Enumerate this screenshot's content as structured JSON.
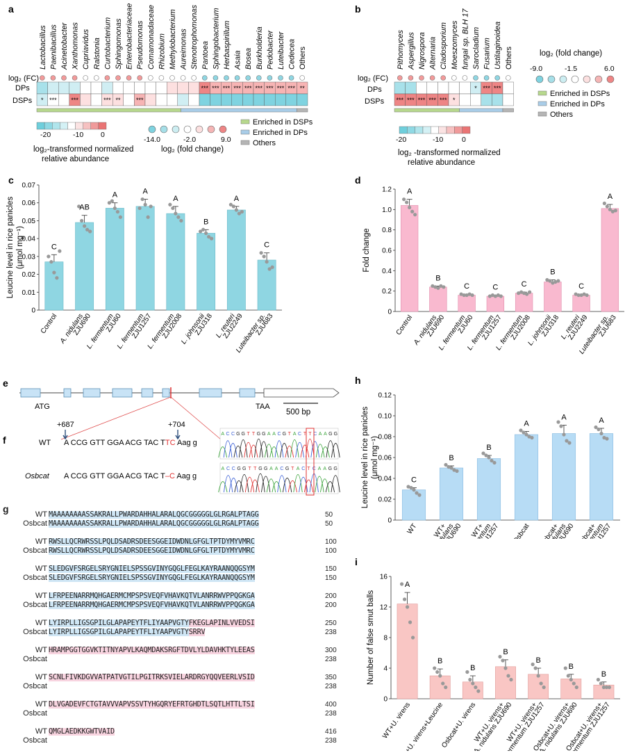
{
  "panel_letters": {
    "a": "a",
    "b": "b",
    "c": "c",
    "d": "d",
    "e": "e",
    "f": "f",
    "g": "g",
    "h": "h",
    "i": "i"
  },
  "panel_a": {
    "taxa": [
      "Lactobacillus",
      "Paenibacillus",
      "Acinetobacter",
      "Xanthomonas",
      "Cupriavidus",
      "Ralstonia",
      "Curtobacterium",
      "Sphingomonas",
      "Enterobacteriaceae",
      "Pseudomonas",
      "Comamonadaceae",
      "Rhizobium",
      "Methylobacterium",
      "Aureimonas",
      "Stenotrophomonas",
      "Pantoea",
      "Sphingobacterium",
      "Herbaspirillum",
      "Asaia",
      "Bosea",
      "Burkholderia",
      "Pedobacter",
      "Luteibacter",
      "Cedecea",
      "Others"
    ],
    "fc_label": "log₂ (FC)",
    "rows": [
      "DPs",
      "DSPs"
    ],
    "dps_stars": [
      "",
      "",
      "",
      "",
      "",
      "",
      "",
      "",
      "",
      "",
      "",
      "",
      "",
      "",
      "",
      "***",
      "***",
      "***",
      "***",
      "***",
      "***",
      "***",
      "***",
      "***",
      "**"
    ],
    "dsps_stars": [
      "*",
      "***",
      "",
      "***",
      "",
      "",
      "***",
      "**",
      "",
      "***",
      "",
      "",
      "",
      "",
      "",
      "",
      "",
      "",
      "",
      "",
      "",
      "",
      "",
      "",
      ""
    ],
    "colorbar_ticks": [
      "-20",
      "-10",
      "0"
    ],
    "colorbar_title_1": "log₂-transformed normalized",
    "colorbar_title_2": "relative abundance",
    "fc_ticks": [
      "-14.0",
      "-2.0",
      "9.0"
    ],
    "fc_title": "log₂ (fold change)",
    "legend": [
      "Enriched in DSPs",
      "Enriched in DPs",
      "Others"
    ]
  },
  "panel_b": {
    "taxa": [
      "Pithomyces",
      "Aspergillus",
      "Nigrospora",
      "Alternaria",
      "Cladosporium",
      "Moeszomyces",
      "fungal sp. BLH 17",
      "Sarocladium",
      "Fusarium",
      "Ustilaginoidea",
      "Others"
    ],
    "fc_label": "log₂ (FC)",
    "rows": [
      "DPs",
      "DSPs"
    ],
    "dps_stars": [
      "",
      "",
      "",
      "",
      "",
      "",
      "",
      "*",
      "***",
      "***",
      ""
    ],
    "dsps_stars": [
      "***",
      "***",
      "***",
      "***",
      "***",
      "*",
      "",
      "",
      "",
      "",
      ""
    ],
    "colorbar_ticks": [
      "-20",
      "-10",
      "0"
    ],
    "colorbar_title_1": "log₂ -transformed normalized",
    "colorbar_title_2": "relative abundance",
    "fc_title": "log₂ (fold change)",
    "fc_ticks": [
      "-9.0",
      "-1.5",
      "6.0"
    ],
    "legend": [
      "Enriched in DSPs",
      "Enriched in DPs",
      "Others"
    ]
  },
  "chart_data": [
    {
      "id": "c",
      "type": "bar",
      "ylabel": "Leucine level in rice panicles (μmol mg⁻¹)",
      "ylim": [
        0,
        0.07
      ],
      "yticks": [
        "0",
        "0.01",
        "0.02",
        "0.03",
        "0.04",
        "0.05",
        "0.06",
        "0.07"
      ],
      "categories": [
        [
          "Control"
        ],
        [
          "A. nidulans",
          "ZJU690"
        ],
        [
          "L. fermentum",
          "ZJU60"
        ],
        [
          "L. fermentum",
          "ZJU1257"
        ],
        [
          "L. fermentum",
          "ZJU2008"
        ],
        [
          "L. johnsonii",
          "ZJU318"
        ],
        [
          "L. reuteri",
          "ZJU2249"
        ],
        [
          "Luteibacter sp.",
          "ZJU683"
        ]
      ],
      "values": [
        0.027,
        0.049,
        0.057,
        0.058,
        0.054,
        0.043,
        0.056,
        0.028
      ],
      "errors": [
        0.004,
        0.004,
        0.003,
        0.004,
        0.004,
        0.002,
        0.002,
        0.004
      ],
      "letters": [
        "C",
        "AB",
        "A",
        "A",
        "A",
        "B",
        "A",
        "C"
      ],
      "points": [
        [
          0.03,
          0.027,
          0.021,
          0.018,
          0.033
        ],
        [
          0.058,
          0.05,
          0.047,
          0.045,
          0.044
        ],
        [
          0.06,
          0.061,
          0.057,
          0.055,
          0.052
        ],
        [
          0.057,
          0.062,
          0.059,
          0.052,
          0.058
        ],
        [
          0.059,
          0.057,
          0.054,
          0.052,
          0.05
        ],
        [
          0.044,
          0.045,
          0.043,
          0.041,
          0.04
        ],
        [
          0.059,
          0.058,
          0.056,
          0.054,
          0.055
        ],
        [
          0.032,
          0.03,
          0.027,
          0.023,
          0.024
        ]
      ]
    },
    {
      "id": "d",
      "type": "bar",
      "ylabel": "Fold change",
      "ylim": [
        0,
        1.2
      ],
      "yticks": [
        "0",
        "0.2",
        "0.4",
        "0.6",
        "0.8",
        "1.0",
        "1.2"
      ],
      "categories": [
        [
          "Control"
        ],
        [
          "A. nidulans",
          "ZJU690"
        ],
        [
          "L. fermentum",
          "ZJU60"
        ],
        [
          "L. fermentum",
          "ZJU1257"
        ],
        [
          "L. fermentum",
          "ZJU2008"
        ],
        [
          "L. johnsonii",
          "ZJU318"
        ],
        [
          "L. reuteri",
          "ZJU2249"
        ],
        [
          "Luteibacter sp.",
          "ZJU683"
        ]
      ],
      "values": [
        1.04,
        0.24,
        0.16,
        0.15,
        0.18,
        0.29,
        0.16,
        1.01
      ],
      "errors": [
        0.06,
        0.01,
        0.01,
        0.01,
        0.01,
        0.02,
        0.01,
        0.04
      ],
      "letters": [
        "A",
        "B",
        "C",
        "C",
        "C",
        "B",
        "C",
        "A"
      ],
      "points": [
        [
          1.1,
          1.07,
          1.02,
          0.98,
          0.95
        ],
        [
          0.25,
          0.24,
          0.23,
          0.25,
          0.24
        ],
        [
          0.17,
          0.16,
          0.16,
          0.17,
          0.16
        ],
        [
          0.15,
          0.16,
          0.15,
          0.16,
          0.15
        ],
        [
          0.18,
          0.19,
          0.18,
          0.17,
          0.19
        ],
        [
          0.31,
          0.3,
          0.28,
          0.29,
          0.3
        ],
        [
          0.17,
          0.16,
          0.16,
          0.17,
          0.16
        ],
        [
          1.06,
          1.03,
          1.0,
          0.98,
          0.99
        ]
      ]
    },
    {
      "id": "h",
      "type": "bar",
      "ylabel": "Leucine level in rice panicles (μmol mg⁻¹)",
      "ylim": [
        0,
        0.12
      ],
      "yticks": [
        "0",
        "0.02",
        "0.04",
        "0.06",
        "0.08",
        "0.10",
        "0.12"
      ],
      "categories": [
        [
          "WT"
        ],
        [
          "WT+",
          "A. nidulans",
          "ZJU690"
        ],
        [
          "WT+",
          "L. fermentum",
          "ZJU1257"
        ],
        [
          "Osbcat"
        ],
        [
          "Osbcat+",
          "A. nidulans",
          "ZJU690"
        ],
        [
          "Osbcat+",
          "L. fermentum",
          "ZJU1257"
        ]
      ],
      "values": [
        0.029,
        0.05,
        0.059,
        0.082,
        0.083,
        0.083
      ],
      "errors": [
        0.002,
        0.002,
        0.003,
        0.003,
        0.008,
        0.005
      ],
      "letters": [
        "C",
        "B",
        "B",
        "A",
        "A",
        "A"
      ],
      "points": [
        [
          0.032,
          0.031,
          0.029,
          0.026,
          0.024
        ],
        [
          0.053,
          0.051,
          0.05,
          0.048,
          0.047
        ],
        [
          0.064,
          0.062,
          0.06,
          0.057,
          0.055
        ],
        [
          0.086,
          0.084,
          0.082,
          0.08,
          0.079
        ],
        [
          0.094,
          0.09,
          0.082,
          0.076,
          0.074
        ],
        [
          0.089,
          0.087,
          0.083,
          0.079,
          0.078
        ]
      ]
    },
    {
      "id": "i",
      "type": "bar",
      "ylabel": "Number of false smut balls",
      "ylim": [
        0,
        16
      ],
      "yticks": [
        "0",
        "4",
        "8",
        "12",
        "16"
      ],
      "categories": [
        [
          "WT+U. virens"
        ],
        [
          "WT+U. virens+Leucine"
        ],
        [
          "Osbcat+U. virens"
        ],
        [
          "WT+U. virens+",
          "A. nidulans ZJU690"
        ],
        [
          "WT+U. virens+",
          "L. fermentum ZJU1257"
        ],
        [
          "Osbcat+U. virens+",
          "A. nidulans ZJU690"
        ],
        [
          "Osbcat+U. virens+",
          "L. fermentum ZJU1257"
        ]
      ],
      "values": [
        12.4,
        3.0,
        2.2,
        4.2,
        3.2,
        2.6,
        1.8
      ],
      "errors": [
        1.5,
        0.9,
        0.8,
        0.9,
        0.8,
        0.6,
        0.4
      ],
      "letters": [
        "A",
        "B",
        "B",
        "B",
        "B",
        "B",
        "B"
      ],
      "points": [
        [
          15.0,
          13.0,
          12.0,
          10.0,
          8.0
        ],
        [
          4.0,
          3.5,
          3.0,
          2.0,
          1.5
        ],
        [
          3.5,
          2.5,
          2.0,
          1.5,
          1.0
        ],
        [
          5.5,
          5.0,
          4.0,
          3.0,
          2.5
        ],
        [
          4.5,
          4.0,
          3.0,
          2.0,
          1.5
        ],
        [
          4.0,
          3.0,
          2.5,
          2.0,
          1.5
        ],
        [
          2.5,
          2.0,
          1.5,
          1.5,
          1.5
        ]
      ]
    }
  ],
  "panel_e": {
    "atg": "ATG",
    "taa": "TAA",
    "scale": "500 bp"
  },
  "panel_f": {
    "pos1": "+687",
    "pos2": "+704",
    "wt_label": "WT",
    "mut_label": "Osbcat",
    "wt_seq_a": "A CCG GTT GGA ACG TAC T",
    "wt_seq_b": "TC",
    "wt_seq_c": " Aag g",
    "mut_seq_a": "A CCG GTT GGA ACG TAC T",
    "mut_seq_b": "–C",
    "mut_seq_c": " Aag g",
    "trace_wt": "ACCGGTTGGAACGTACTTCAAGG",
    "trace_mut": "ACCGGTTGGAACGTACTCAAGG"
  },
  "panel_g": {
    "rows": [
      {
        "wt": "MAAAAAAAASSAKRALLPWARDAHHALARALQGCGGGGGLGLRGALPTAGG",
        "os": "MAAAAAAAASSAKRALLPWARDAHHALARALQGCGGGGGLGLRGALPTAGG",
        "n1": "50",
        "n2": "50"
      },
      {
        "wt": "RWSLLQCRWRSSLPQLDSADRSDEESGGEIDWDNLGFGLTPTDYMYVMRC",
        "os": "RWSLLQCRWRSSLPQLDSADRSDEESGGEIDWDNLGFGLTPTDYMYVMRC",
        "n1": "100",
        "n2": "100"
      },
      {
        "wt": "SLEDGVFSRGELSRYGNIELSPSSGVINYGQGLFEGLKAYRAANQQGSYM",
        "os": "SLEDGVFSRGELSRYGNIELSPSSGVINYGQGLFEGLKAYRAANQQGSYM",
        "n1": "150",
        "n2": "150"
      },
      {
        "wt": "LFRPEENARRMQHGAERMCMPSPSVEQFVHAVKQTVLANRRWVPPQGKGA",
        "os": "LFRPEENARRMQHGAERMCMPSPSVEQFVHAVKQTVLANRRWVPPQGKGA",
        "n1": "200",
        "n2": "200"
      },
      {
        "wt_blue": "LYIRPLLIGSGPILGLAPAPEYTFLIYAAPVGTY",
        "wt_pink": "FKEGLAPINLVVEDSI",
        "os_blue": "LYIRPLLIGSGPILGLAPAPEYTFLIYAAPVGTY",
        "os_pink": "SRRV",
        "n1": "250",
        "n2": "238"
      },
      {
        "wt": "HRAMPGGTGGVKTITNYAPVLKAQMDAKSRGFTDVLYLDAVHKTYLEEAS",
        "os": "",
        "n1": "300",
        "n2": "238"
      },
      {
        "wt": "SCNLFIVKDGVVATPATVGTILPGITRKSVIELARDRGYQQVEERLVSID",
        "os": "",
        "n1": "350",
        "n2": "238"
      },
      {
        "wt": "DLVGADEVFCTGTAVVVAPVSSVTYHGQRYEFRTGHDTLSQTLHTTLTSI",
        "os": "",
        "n1": "400",
        "n2": "238"
      },
      {
        "wt": "QMGLAEDKKGWTVAID",
        "os": "",
        "n1": "416",
        "n2": "238"
      }
    ],
    "wt_label": "WT",
    "os_label": "Osbcat"
  },
  "colors": {
    "teal": "#8fd6e2",
    "pink": "#f9b9cf",
    "lightblue": "#b7dcf5",
    "salmon": "#f9c6c4",
    "dsp_green": "#b7d88d",
    "dp_blue": "#a9cde8",
    "others_gray": "#b5b5b5"
  }
}
